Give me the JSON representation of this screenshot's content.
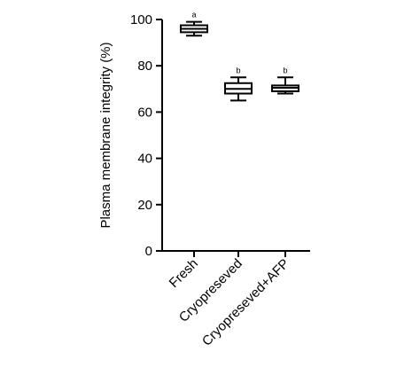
{
  "chart_data": {
    "type": "boxplot",
    "ylabel": "Plasma membrane integrity (%)",
    "ylim": [
      0,
      100
    ],
    "yticks": [
      0,
      20,
      40,
      60,
      80,
      100
    ],
    "grid": false,
    "categories": [
      "Fresh",
      "Cryopreseved",
      "Cryopreseved+AFP"
    ],
    "boxes": [
      {
        "min": 93,
        "q1": 94.5,
        "median": 96,
        "q3": 97.5,
        "max": 99,
        "label": "a"
      },
      {
        "min": 65,
        "q1": 68,
        "median": 70,
        "q3": 72.5,
        "max": 75,
        "label": "b"
      },
      {
        "min": 68,
        "q1": 69,
        "median": 70.5,
        "q3": 71.5,
        "max": 75,
        "label": "b"
      }
    ],
    "colors": {
      "stroke": "#000000",
      "fill": "#ffffff"
    }
  }
}
